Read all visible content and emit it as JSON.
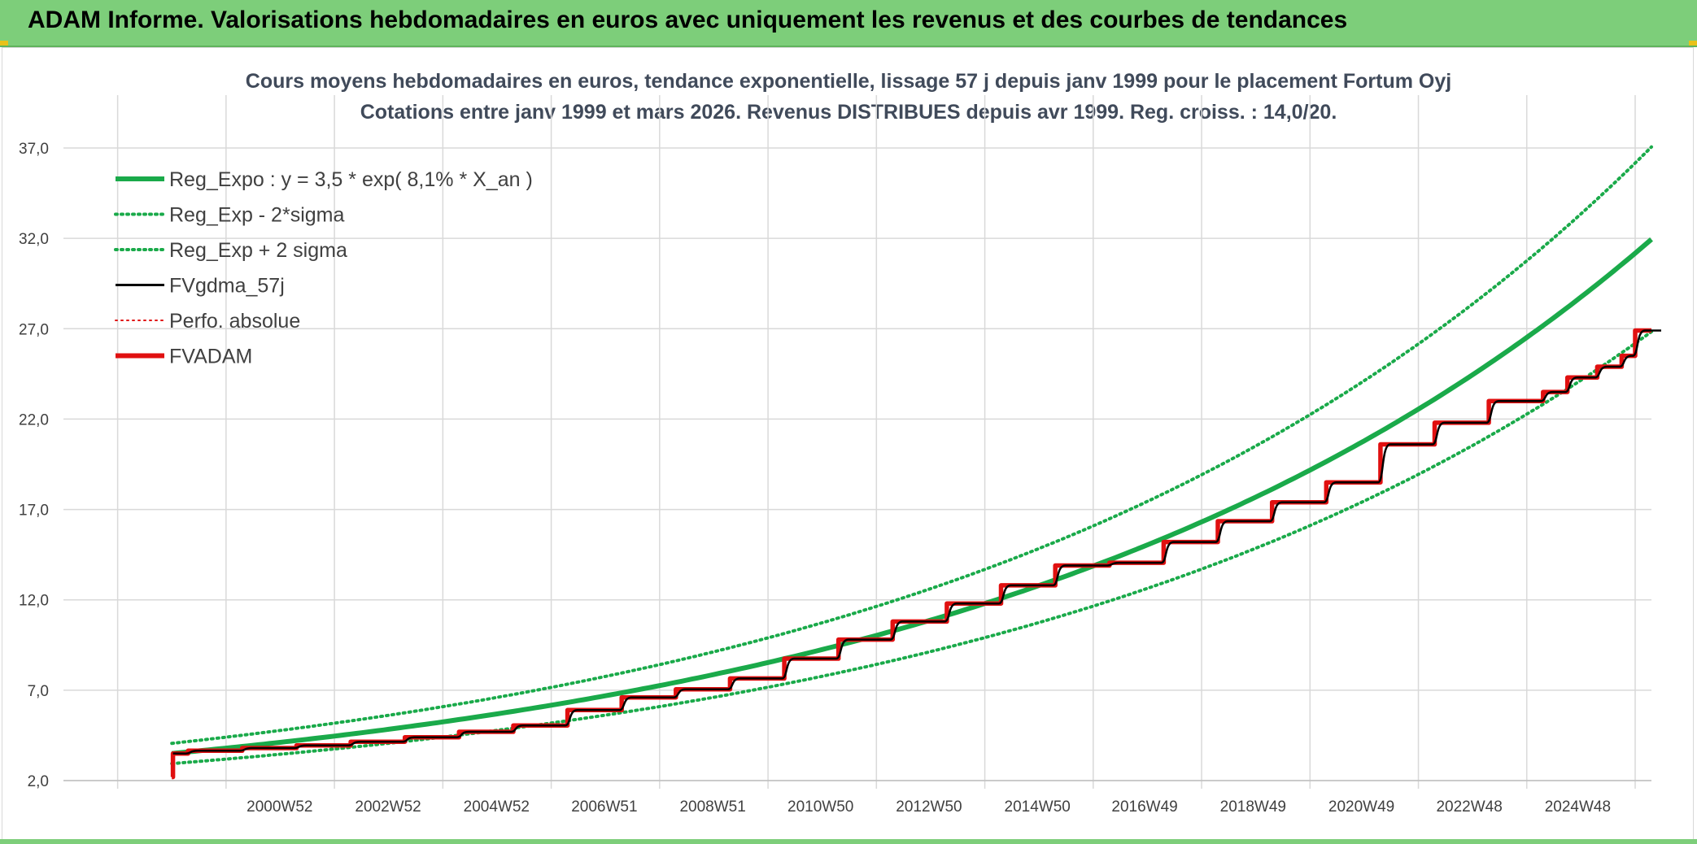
{
  "header": {
    "title": "ADAM Informe. Valorisations hebdomadaires en euros avec uniquement les revenus et des courbes de tendances"
  },
  "colors": {
    "header_bg": "#7dce7a",
    "reg_green": "#1aaa4a",
    "fva_red": "#e01010",
    "gdma_black": "#000000",
    "grid": "#d9d9d9"
  },
  "chart_data": {
    "type": "line",
    "title": "Cours moyens hebdomadaires en euros, tendance exponentielle, lissage 57 j depuis janv 1999 pour le placement Fortum Oyj",
    "subtitle": "Cotations entre janv 1999 et mars 2026. Revenus DISTRIBUES depuis avr 1999. Reg. croiss. : 14,0/20.",
    "xlabel": "",
    "ylabel": "",
    "ylim": [
      2,
      37
    ],
    "xlim": [
      1997.0,
      2026.3
    ],
    "y_ticks": [
      "2,0",
      "7,0",
      "12,0",
      "17,0",
      "22,0",
      "27,0",
      "32,0",
      "37,0"
    ],
    "x_tick_labels": [
      "2000W52",
      "2002W52",
      "2004W52",
      "2006W51",
      "2008W51",
      "2010W50",
      "2012W50",
      "2014W50",
      "2016W49",
      "2018W49",
      "2020W49",
      "2022W48",
      "2024W48"
    ],
    "x_tick_years": [
      2000.99,
      2002.99,
      2004.99,
      2006.98,
      2008.98,
      2010.97,
      2012.97,
      2014.97,
      2016.95,
      2018.95,
      2020.95,
      2022.94,
      2024.94
    ],
    "x_grid_years": [
      1998.0,
      2000.0,
      2002.0,
      2004.0,
      2006.0,
      2008.0,
      2010.0,
      2012.0,
      2014.0,
      2016.0,
      2018.0,
      2020.0,
      2022.0,
      2024.0,
      2026.0
    ],
    "grid": true,
    "legend_position": "top-left",
    "regression": {
      "a": 3.5,
      "rate": 0.081,
      "x0": 1999.0,
      "sigma_factor": 0.16
    },
    "series": [
      {
        "name": "Reg_Expo : y = 3,5 * exp( 8,1% *  X_an )",
        "style": "thick-solid",
        "color": "#1aaa4a"
      },
      {
        "name": "Reg_Exp - 2*sigma",
        "style": "dotted",
        "color": "#1aaa4a"
      },
      {
        "name": "Reg_Exp + 2 sigma",
        "style": "dotted",
        "color": "#1aaa4a"
      },
      {
        "name": "FVgdma_57j",
        "style": "solid",
        "color": "#000000"
      },
      {
        "name": "Perfo. absolue",
        "style": "dotted",
        "color": "#e01010"
      },
      {
        "name": "FVADAM",
        "style": "thick-solid",
        "color": "#e01010"
      }
    ],
    "fvadam_steps": [
      [
        1999.0,
        2.2
      ],
      [
        1999.02,
        3.5
      ],
      [
        1999.3,
        3.65
      ],
      [
        2000.3,
        3.8
      ],
      [
        2001.3,
        3.95
      ],
      [
        2002.3,
        4.15
      ],
      [
        2003.3,
        4.4
      ],
      [
        2004.3,
        4.7
      ],
      [
        2005.3,
        5.05
      ],
      [
        2006.3,
        5.9
      ],
      [
        2007.3,
        6.6
      ],
      [
        2008.3,
        7.05
      ],
      [
        2009.3,
        7.65
      ],
      [
        2010.3,
        8.75
      ],
      [
        2011.3,
        9.8
      ],
      [
        2012.3,
        10.8
      ],
      [
        2013.3,
        11.8
      ],
      [
        2014.3,
        12.8
      ],
      [
        2015.3,
        13.9
      ],
      [
        2016.3,
        14.05
      ],
      [
        2017.3,
        15.2
      ],
      [
        2018.3,
        16.35
      ],
      [
        2019.3,
        17.4
      ],
      [
        2020.3,
        18.5
      ],
      [
        2021.3,
        20.6
      ],
      [
        2022.3,
        21.8
      ],
      [
        2023.3,
        23.0
      ],
      [
        2024.3,
        23.5
      ],
      [
        2024.75,
        24.3
      ],
      [
        2025.3,
        24.9
      ],
      [
        2025.75,
        25.5
      ],
      [
        2026.0,
        26.9
      ],
      [
        2026.3,
        26.9
      ]
    ]
  }
}
